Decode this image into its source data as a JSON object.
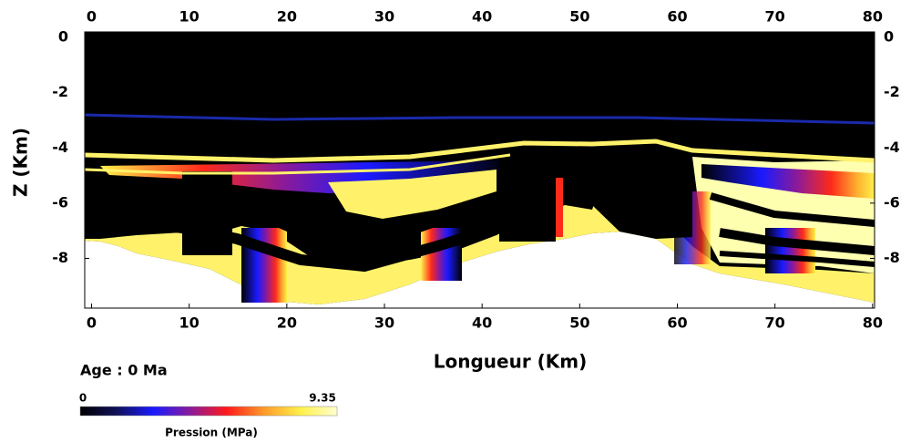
{
  "chart_data": {
    "type": "section",
    "title": "Age : 0 Ma",
    "x_label": "Longueur (Km)",
    "y_label": "Z (Km)",
    "xlim": [
      -0.7,
      80.2
    ],
    "ylim": [
      -9.8,
      0.2
    ],
    "xticks": [
      0,
      10,
      20,
      30,
      40,
      50,
      60,
      70,
      80
    ],
    "yticks": [
      0,
      -2,
      -4,
      -6,
      -8
    ],
    "colorbar": {
      "label": "Pression (MPa)",
      "range": [
        0,
        9.35
      ],
      "colors": [
        "#000000",
        "#10105a",
        "#1a1aff",
        "#8a1a9a",
        "#ff1a1a",
        "#ff9a2a",
        "#fff04a",
        "#ffffd0"
      ]
    }
  }
}
